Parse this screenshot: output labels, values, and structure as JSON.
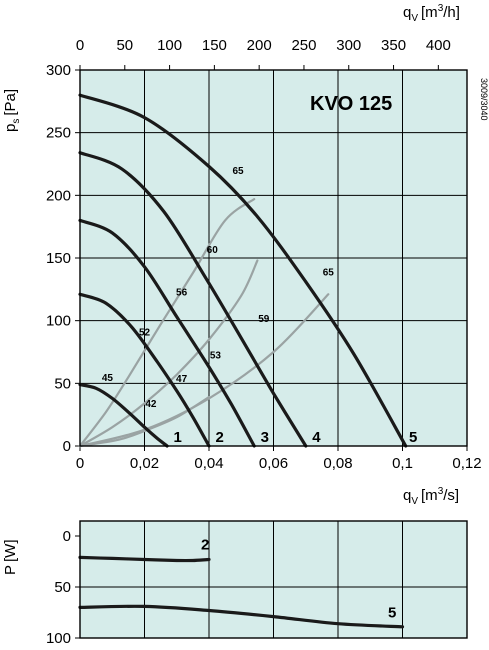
{
  "chart_data": [
    {
      "type": "line",
      "title": "KVO 125",
      "code": "3009/3040",
      "xlabel": "q",
      "xlabel_sub": "V",
      "xlabel_unit": "[m",
      "xlabel_unit_sup": "3",
      "xlabel_unit_tail": "/s]",
      "x2label": "q",
      "x2label_sub": "V",
      "x2label_unit": "[m",
      "x2label_unit_sup": "3",
      "x2label_unit_tail": "/h]",
      "ylabel": "p",
      "ylabel_sub": "s",
      "ylabel_unit": "[Pa]",
      "xlim": [
        0,
        0.12
      ],
      "ylim": [
        0,
        300
      ],
      "x2lim": [
        0,
        432
      ],
      "x_ticks": [
        0,
        0.02,
        0.04,
        0.06,
        0.08,
        0.1,
        0.12
      ],
      "x_tick_labels": [
        "0",
        "0,02",
        "0,04",
        "0,06",
        "0,08",
        "0,1",
        "0,12"
      ],
      "x2_ticks": [
        0,
        50,
        100,
        150,
        200,
        250,
        300,
        350,
        400
      ],
      "x2_tick_labels": [
        "0",
        "50",
        "100",
        "150",
        "200",
        "250",
        "300",
        "350",
        "400"
      ],
      "y_ticks": [
        0,
        50,
        100,
        150,
        200,
        250,
        300
      ],
      "y_tick_labels": [
        "0",
        "50",
        "100",
        "150",
        "200",
        "250",
        "300"
      ],
      "grid": true,
      "series": [
        {
          "name": "1",
          "x": [
            0,
            0.005,
            0.01,
            0.015,
            0.02,
            0.024,
            0.027
          ],
          "y": [
            49,
            46,
            38,
            27,
            15,
            6,
            0
          ]
        },
        {
          "name": "2",
          "x": [
            0,
            0.008,
            0.016,
            0.024,
            0.03,
            0.035,
            0.04
          ],
          "y": [
            121,
            114,
            95,
            67,
            44,
            23,
            0
          ]
        },
        {
          "name": "3",
          "x": [
            0,
            0.01,
            0.02,
            0.03,
            0.04,
            0.047,
            0.054
          ],
          "y": [
            180,
            170,
            143,
            103,
            63,
            33,
            0
          ]
        },
        {
          "name": "4",
          "x": [
            0,
            0.013,
            0.026,
            0.039,
            0.05,
            0.06,
            0.07
          ],
          "y": [
            234,
            221,
            187,
            134,
            86,
            42,
            0
          ]
        },
        {
          "name": "5",
          "x": [
            0,
            0.02,
            0.04,
            0.055,
            0.07,
            0.085,
            0.101
          ],
          "y": [
            280,
            262,
            223,
            183,
            131,
            73,
            0
          ]
        }
      ],
      "efficiency_lines": [
        {
          "x": [
            0,
            0.012,
            0.02,
            0.03,
            0.04
          ],
          "y": [
            0,
            5,
            12,
            23,
            39
          ]
        },
        {
          "x": [
            0,
            0.01,
            0.02,
            0.03,
            0.04,
            0.05,
            0.055
          ],
          "y": [
            0,
            15,
            34,
            57,
            85,
            120,
            148
          ]
        },
        {
          "x": [
            0,
            0.02,
            0.04,
            0.06,
            0.077
          ],
          "y": [
            0,
            13,
            38,
            75,
            121
          ]
        },
        {
          "x": [
            0,
            0.008,
            0.015,
            0.025,
            0.035,
            0.045,
            0.054
          ],
          "y": [
            0,
            27,
            55,
            97,
            138,
            180,
            197
          ]
        }
      ],
      "efficiency_labels": [
        {
          "text": "45",
          "x": 0.0085,
          "y": 52
        },
        {
          "text": "42",
          "x": 0.022,
          "y": 31
        },
        {
          "text": "47",
          "x": 0.0315,
          "y": 51
        },
        {
          "text": "52",
          "x": 0.02,
          "y": 88
        },
        {
          "text": "53",
          "x": 0.042,
          "y": 70
        },
        {
          "text": "56",
          "x": 0.0315,
          "y": 120
        },
        {
          "text": "59",
          "x": 0.057,
          "y": 99
        },
        {
          "text": "60",
          "x": 0.041,
          "y": 154
        },
        {
          "text": "65",
          "x": 0.049,
          "y": 217
        },
        {
          "text": "65",
          "x": 0.077,
          "y": 136
        }
      ],
      "curve_labels": [
        {
          "text": "1",
          "x": 0.029,
          "y": 3
        },
        {
          "text": "2",
          "x": 0.042,
          "y": 3
        },
        {
          "text": "3",
          "x": 0.056,
          "y": 3
        },
        {
          "text": "4",
          "x": 0.072,
          "y": 3
        },
        {
          "text": "5",
          "x": 0.102,
          "y": 3
        }
      ]
    },
    {
      "type": "line",
      "ylabel": "P",
      "ylabel_unit": "[W]",
      "xlim": [
        0,
        0.12
      ],
      "ylim": [
        0,
        100
      ],
      "y_ticks": [
        0,
        50,
        100
      ],
      "y_tick_labels": [
        "0",
        "50",
        "100"
      ],
      "grid": true,
      "series": [
        {
          "name": "2",
          "x": [
            0,
            0.01,
            0.02,
            0.03,
            0.035,
            0.04
          ],
          "y": [
            21,
            22,
            23,
            24,
            24,
            23
          ]
        },
        {
          "name": "5",
          "x": [
            0,
            0.02,
            0.04,
            0.06,
            0.08,
            0.1
          ],
          "y": [
            70,
            69,
            73,
            79,
            86,
            89
          ]
        }
      ],
      "curve_labels": [
        {
          "text": "2",
          "x": 0.0375,
          "y": 13
        },
        {
          "text": "5",
          "x": 0.0955,
          "y": 80
        }
      ]
    }
  ]
}
